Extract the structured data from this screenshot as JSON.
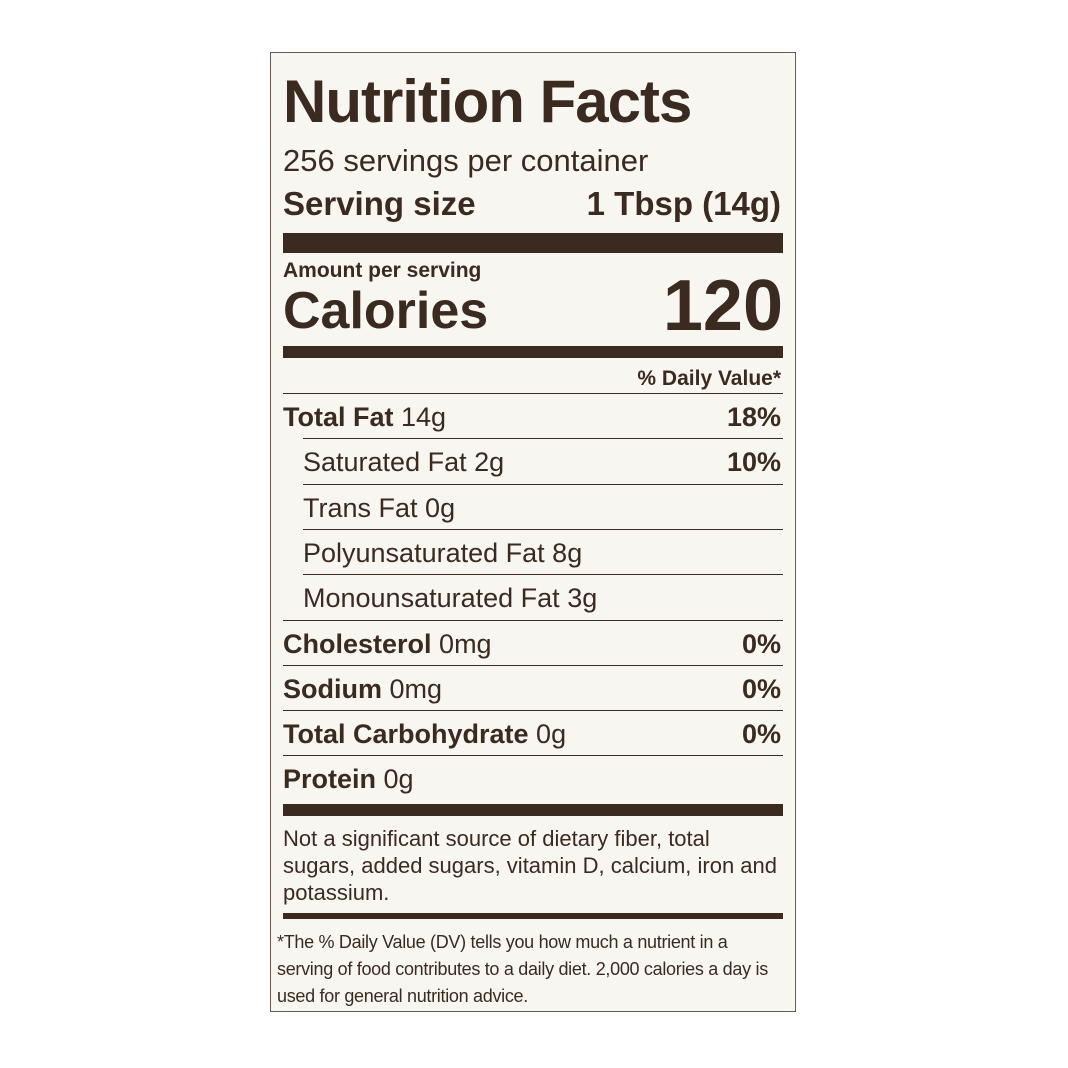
{
  "title": "Nutrition Facts",
  "servings": "256 servings per container",
  "serving_size": {
    "label": "Serving size",
    "value": "1 Tbsp (14g)"
  },
  "amount_per_serving": "Amount per serving",
  "calories": {
    "label": "Calories",
    "value": 120
  },
  "dv_header": "% Daily Value*",
  "nutrients": [
    {
      "name": "Total Fat",
      "amount": "14g",
      "dv": "18%",
      "bold": true
    },
    {
      "name": "Saturated Fat",
      "amount": "2g",
      "dv": "10%",
      "bold": false
    },
    {
      "name": "Trans Fat",
      "amount": "0g",
      "bold": false
    },
    {
      "name": "Polyunsaturated Fat",
      "amount": "8g",
      "bold": false
    },
    {
      "name": "Monounsaturated Fat",
      "amount": "3g",
      "bold": false
    },
    {
      "name": "Cholesterol",
      "amount": "0mg",
      "dv": "0%",
      "bold": true
    },
    {
      "name": "Sodium",
      "amount": "0mg",
      "dv": "0%",
      "bold": true
    },
    {
      "name": "Total Carbohydrate",
      "amount": "0g",
      "dv": "0%",
      "bold": true
    },
    {
      "name": "Protein",
      "amount": "0g",
      "bold": true
    }
  ],
  "note": "Not a significant source of dietary fiber, total sugars, added sugars, vitamin D, calcium, iron and potassium.",
  "dv_footnote": "*The % Daily Value (DV) tells you how much a nutrient in a serving of food contributes to a daily diet. 2,000 calories a day is used for general nutrition advice."
}
